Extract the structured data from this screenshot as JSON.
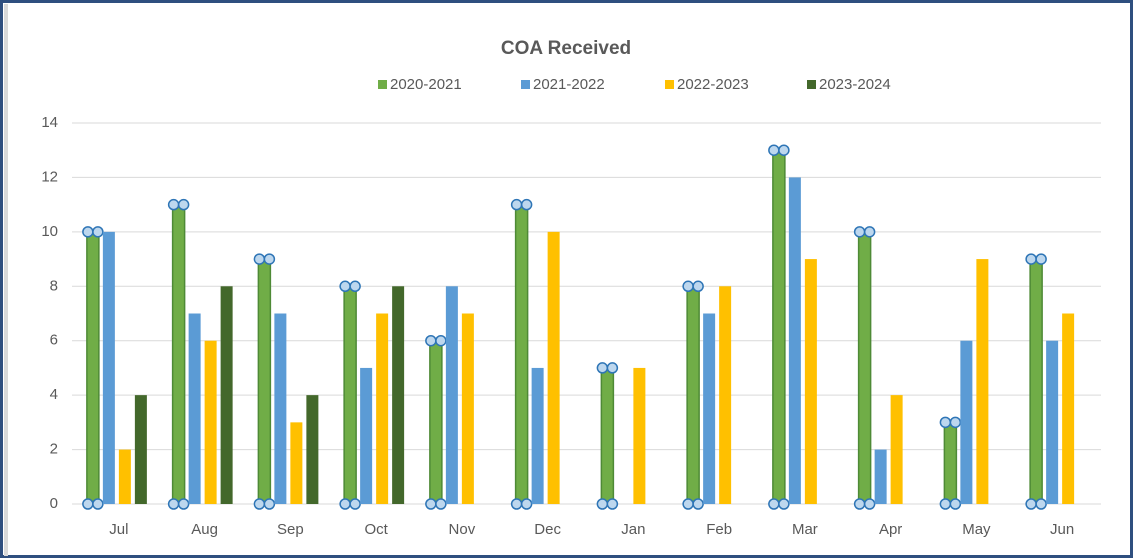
{
  "chart_data": {
    "type": "bar",
    "title": "COA Received",
    "categories": [
      "Jul",
      "Aug",
      "Sep",
      "Oct",
      "Nov",
      "Dec",
      "Jan",
      "Feb",
      "Mar",
      "Apr",
      "May",
      "Jun"
    ],
    "series": [
      {
        "name": "2020-2021",
        "color": "#70ad47",
        "values": [
          10,
          11,
          9,
          8,
          6,
          11,
          5,
          8,
          13,
          10,
          3,
          9
        ]
      },
      {
        "name": "2021-2022",
        "color": "#5b9bd5",
        "values": [
          10,
          7,
          7,
          5,
          8,
          5,
          null,
          7,
          12,
          2,
          6,
          6
        ]
      },
      {
        "name": "2022-2023",
        "color": "#ffc000",
        "values": [
          2,
          6,
          3,
          7,
          7,
          10,
          5,
          8,
          9,
          4,
          9,
          7
        ]
      },
      {
        "name": "2023-2024",
        "color": "#43682b",
        "values": [
          4,
          8,
          4,
          8,
          null,
          null,
          null,
          null,
          null,
          null,
          null,
          null
        ]
      }
    ],
    "ylim": [
      0,
      14
    ],
    "yticks": [
      0,
      2,
      4,
      6,
      8,
      10,
      12,
      14
    ],
    "grid": true,
    "legend": "top"
  }
}
